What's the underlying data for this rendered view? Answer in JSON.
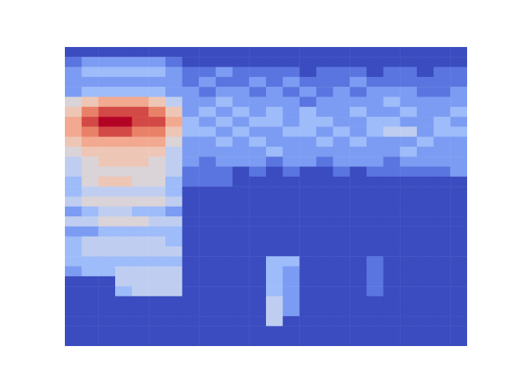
{
  "chart_data": {
    "type": "heatmap",
    "tick_labels": false,
    "zlim": [
      0,
      10
    ],
    "cells": [
      [
        0,
        0,
        0,
        0,
        0,
        0,
        0,
        0,
        0,
        0,
        0,
        0,
        0,
        0,
        0,
        0,
        0,
        0,
        0,
        0,
        0,
        0,
        0,
        0
      ],
      [
        1,
        2,
        2,
        2,
        2,
        2,
        1,
        0,
        0,
        0,
        0,
        0,
        0,
        0,
        0,
        0,
        0,
        0,
        0,
        0,
        0,
        0,
        0,
        0
      ],
      [
        2,
        3,
        3,
        3,
        3,
        3,
        2,
        1,
        1,
        2,
        1,
        1,
        1,
        1,
        0,
        1,
        1,
        1,
        0,
        1,
        1,
        0,
        1,
        1
      ],
      [
        2,
        2,
        2,
        2,
        2,
        2,
        2,
        1,
        2,
        1,
        1,
        2,
        1,
        2,
        1,
        1,
        1,
        2,
        1,
        1,
        1,
        1,
        1,
        1
      ],
      [
        2,
        3,
        3,
        3,
        3,
        3,
        2,
        2,
        1,
        2,
        2,
        1,
        2,
        1,
        2,
        1,
        2,
        1,
        2,
        2,
        2,
        1,
        1,
        2
      ],
      [
        5,
        6,
        7,
        7,
        7,
        6,
        4,
        2,
        2,
        3,
        2,
        2,
        2,
        2,
        1,
        2,
        2,
        2,
        2,
        3,
        2,
        2,
        2,
        2
      ],
      [
        6,
        8,
        9,
        9,
        9,
        8,
        6,
        2,
        3,
        2,
        3,
        2,
        3,
        2,
        3,
        2,
        2,
        3,
        2,
        2,
        3,
        2,
        2,
        3
      ],
      [
        7,
        9,
        10,
        10,
        9,
        9,
        7,
        3,
        2,
        3,
        2,
        3,
        3,
        2,
        3,
        3,
        2,
        2,
        3,
        3,
        2,
        2,
        3,
        2
      ],
      [
        7,
        8,
        9,
        9,
        8,
        8,
        6,
        3,
        3,
        2,
        3,
        2,
        2,
        3,
        3,
        2,
        3,
        2,
        3,
        4,
        4,
        2,
        3,
        3
      ],
      [
        6,
        7,
        7,
        7,
        7,
        7,
        5,
        2,
        2,
        3,
        2,
        3,
        2,
        2,
        2,
        3,
        2,
        3,
        2,
        2,
        2,
        3,
        2,
        2
      ],
      [
        5,
        6,
        6,
        6,
        6,
        6,
        4,
        2,
        2,
        2,
        2,
        2,
        3,
        2,
        2,
        2,
        2,
        2,
        2,
        2,
        3,
        2,
        2,
        2
      ],
      [
        4,
        5,
        6,
        6,
        6,
        5,
        4,
        2,
        1,
        2,
        2,
        2,
        1,
        2,
        2,
        1,
        2,
        2,
        2,
        1,
        2,
        2,
        2,
        2
      ],
      [
        4,
        5,
        5,
        5,
        5,
        5,
        4,
        1,
        1,
        1,
        0,
        1,
        0,
        1,
        0,
        0,
        1,
        0,
        1,
        1,
        1,
        1,
        1,
        2
      ],
      [
        3,
        5,
        6,
        6,
        5,
        5,
        3,
        1,
        1,
        1,
        0,
        0,
        0,
        0,
        0,
        0,
        0,
        0,
        0,
        0,
        0,
        0,
        0,
        0
      ],
      [
        3,
        4,
        4,
        4,
        4,
        4,
        3,
        0,
        0,
        0,
        0,
        0,
        0,
        0,
        0,
        0,
        0,
        0,
        0,
        0,
        0,
        0,
        0,
        0
      ],
      [
        4,
        5,
        5,
        5,
        5,
        5,
        4,
        0,
        0,
        0,
        0,
        0,
        0,
        0,
        0,
        0,
        0,
        0,
        0,
        0,
        0,
        0,
        0,
        0
      ],
      [
        2,
        3,
        4,
        4,
        3,
        3,
        2,
        0,
        0,
        0,
        0,
        0,
        0,
        0,
        0,
        0,
        0,
        0,
        0,
        0,
        0,
        0,
        0,
        0
      ],
      [
        4,
        4,
        5,
        5,
        5,
        4,
        4,
        0,
        0,
        0,
        0,
        0,
        0,
        0,
        0,
        0,
        0,
        0,
        0,
        0,
        0,
        0,
        0,
        0
      ],
      [
        2,
        2,
        3,
        3,
        3,
        3,
        3,
        0,
        0,
        0,
        0,
        0,
        0,
        0,
        0,
        0,
        0,
        0,
        0,
        0,
        0,
        0,
        0,
        0
      ],
      [
        3,
        4,
        4,
        4,
        4,
        4,
        3,
        0,
        0,
        0,
        0,
        0,
        0,
        0,
        0,
        0,
        0,
        0,
        0,
        0,
        0,
        0,
        0,
        0
      ],
      [
        3,
        4,
        4,
        4,
        4,
        4,
        4,
        0,
        0,
        0,
        0,
        0,
        0,
        0,
        0,
        0,
        0,
        0,
        0,
        0,
        0,
        0,
        0,
        0
      ],
      [
        3,
        3,
        3,
        3,
        3,
        3,
        3,
        0,
        0,
        0,
        0,
        0,
        3,
        3,
        0,
        0,
        0,
        0,
        1,
        0,
        0,
        0,
        0,
        0
      ],
      [
        2,
        3,
        3,
        4,
        4,
        4,
        4,
        0,
        0,
        0,
        0,
        0,
        3,
        2,
        0,
        0,
        0,
        0,
        1,
        0,
        0,
        0,
        0,
        0
      ],
      [
        0,
        0,
        0,
        4,
        4,
        4,
        4,
        0,
        0,
        0,
        0,
        0,
        3,
        2,
        0,
        0,
        0,
        0,
        1,
        0,
        0,
        0,
        0,
        0
      ],
      [
        0,
        0,
        0,
        3,
        4,
        4,
        4,
        0,
        0,
        0,
        0,
        0,
        3,
        2,
        0,
        0,
        0,
        0,
        1,
        0,
        0,
        0,
        0,
        0
      ],
      [
        0,
        0,
        0,
        0,
        0,
        0,
        0,
        0,
        0,
        0,
        0,
        0,
        4,
        2,
        0,
        0,
        0,
        0,
        0,
        0,
        0,
        0,
        0,
        0
      ],
      [
        0,
        0,
        0,
        0,
        0,
        0,
        0,
        0,
        0,
        0,
        0,
        0,
        4,
        2,
        0,
        0,
        0,
        0,
        0,
        0,
        0,
        0,
        0,
        0
      ],
      [
        0,
        0,
        0,
        0,
        0,
        0,
        0,
        0,
        0,
        0,
        0,
        0,
        4,
        0,
        0,
        0,
        0,
        0,
        0,
        0,
        0,
        0,
        0,
        0
      ],
      [
        0,
        0,
        0,
        0,
        0,
        0,
        0,
        0,
        0,
        0,
        0,
        0,
        0,
        0,
        0,
        0,
        0,
        0,
        0,
        0,
        0,
        0,
        0,
        0
      ],
      [
        0,
        0,
        0,
        0,
        0,
        0,
        0,
        0,
        0,
        0,
        0,
        0,
        0,
        0,
        0,
        0,
        0,
        0,
        0,
        0,
        0,
        0,
        0,
        0
      ]
    ]
  }
}
